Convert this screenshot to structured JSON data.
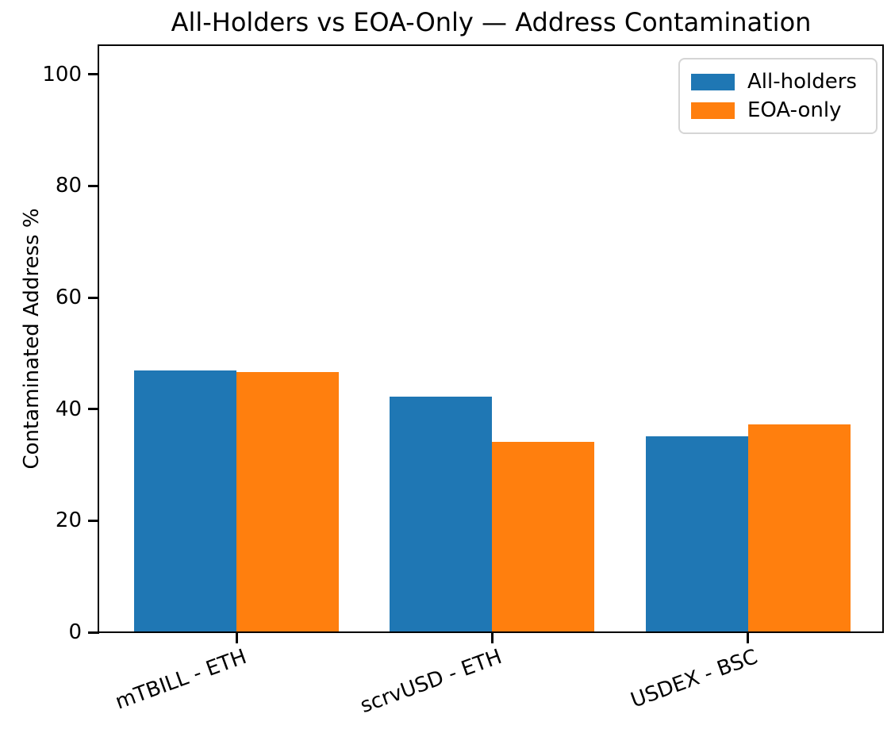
{
  "chart_data": {
    "type": "bar",
    "title": "All-Holders vs EOA-Only — Address Contamination",
    "ylabel": "Contaminated Address %",
    "xlabel": "",
    "categories": [
      "mTBILL - ETH",
      "scrvUSD - ETH",
      "USDEX - BSC"
    ],
    "series": [
      {
        "name": "All-holders",
        "color": "#1f77b4",
        "values": [
          47.0,
          42.3,
          35.1
        ]
      },
      {
        "name": "EOA-only",
        "color": "#ff7f0e",
        "values": [
          46.6,
          34.2,
          37.3
        ]
      }
    ],
    "yticks": [
      0,
      20,
      40,
      60,
      80,
      100
    ],
    "ylim": [
      0,
      105.1
    ],
    "grid": false,
    "legend_position": "upper right",
    "bar_group_gap": true
  }
}
